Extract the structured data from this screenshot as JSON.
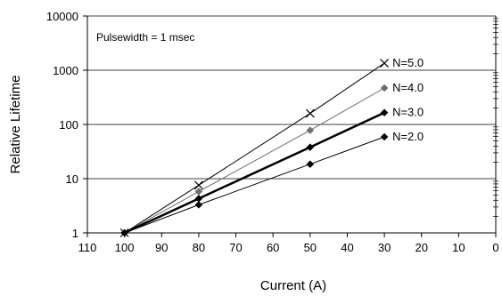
{
  "chart_data": {
    "type": "line",
    "xlabel": "Current (A)",
    "ylabel": "Relative Lifetime",
    "annotation": "Pulsewidth = 1 msec",
    "x_reversed": true,
    "xlim": [
      0,
      110
    ],
    "ylim": [
      1,
      10000
    ],
    "y_scale": "log",
    "x_ticks": [
      "110",
      "100",
      "90",
      "80",
      "70",
      "60",
      "50",
      "40",
      "30",
      "20",
      "10",
      "0"
    ],
    "y_ticks": [
      "1",
      "10",
      "100",
      "1000",
      "10000"
    ],
    "grid": "horizontal at decades",
    "series": [
      {
        "name": "N=5.0",
        "x": [
          100,
          80,
          50,
          30
        ],
        "y": [
          1,
          7.6,
          160,
          1350
        ],
        "color": "#000000",
        "marker": "x",
        "line_width": 1
      },
      {
        "name": "N=4.0",
        "x": [
          100,
          80,
          50,
          30
        ],
        "y": [
          1,
          5.8,
          78,
          470
        ],
        "color": "#6e6e6e",
        "marker": "diamond",
        "line_width": 1
      },
      {
        "name": "N=3.0",
        "x": [
          100,
          80,
          50,
          30
        ],
        "y": [
          1,
          4.3,
          38,
          165
        ],
        "color": "#000000",
        "marker": "diamond",
        "line_width": 2.5
      },
      {
        "name": "N=2.0",
        "x": [
          100,
          80,
          50,
          30
        ],
        "y": [
          1,
          3.3,
          18.5,
          59
        ],
        "color": "#000000",
        "marker": "diamond",
        "line_width": 1
      }
    ]
  }
}
